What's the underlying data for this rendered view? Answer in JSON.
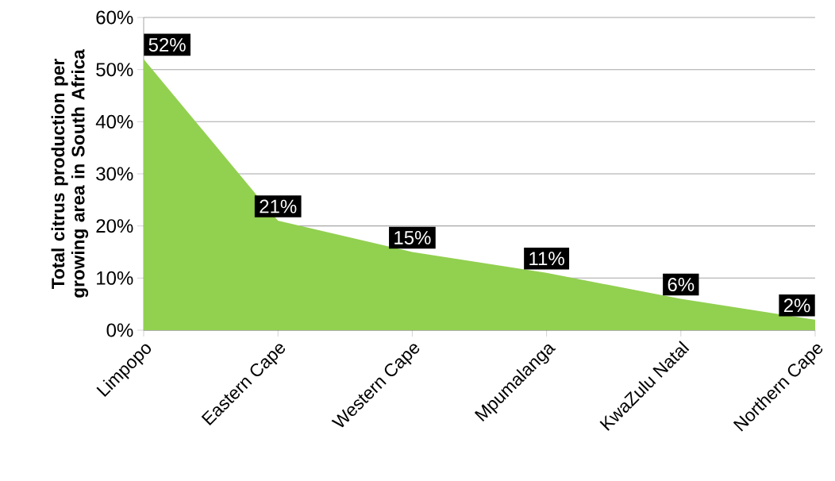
{
  "chart_data": {
    "type": "area",
    "ylabel": "Total citrus production  per growing area in South Africa",
    "categories": [
      "Limpopo",
      "Eastern Cape",
      "Western Cape",
      "Mpumalanga",
      "KwaZulu Natal",
      "Northern Cape"
    ],
    "values": [
      52,
      21,
      15,
      11,
      6,
      2
    ],
    "color": "#92d050",
    "value_labels": [
      "52%",
      "21%",
      "15%",
      "11%",
      "6%",
      "2%"
    ],
    "ylim": [
      0,
      60
    ],
    "yticks": [
      {
        "value": 0,
        "label": "0%"
      },
      {
        "value": 10,
        "label": "10%"
      },
      {
        "value": 20,
        "label": "20%"
      },
      {
        "value": 30,
        "label": "30%"
      },
      {
        "value": 40,
        "label": "40%"
      },
      {
        "value": 50,
        "label": "50%"
      },
      {
        "value": 60,
        "label": "60%"
      }
    ],
    "grid": "y"
  }
}
